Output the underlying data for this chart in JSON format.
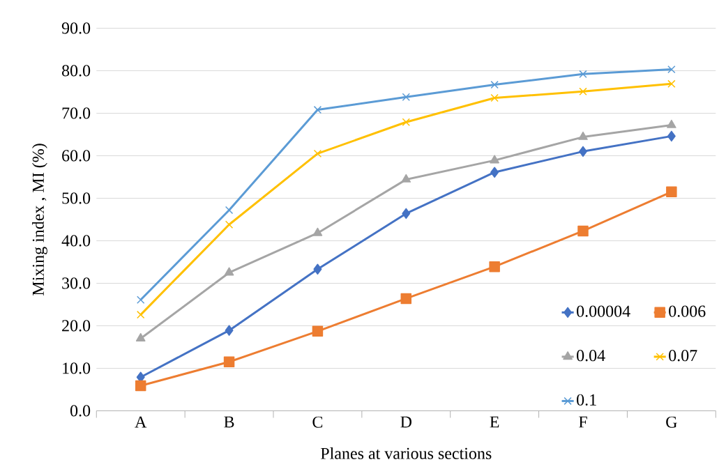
{
  "chart_data": {
    "type": "line",
    "xlabel": "Planes at various sections",
    "ylabel": "Mixing index , MI (%)",
    "categories": [
      "A",
      "B",
      "C",
      "D",
      "E",
      "F",
      "G"
    ],
    "series": [
      {
        "name": "0.00004",
        "color": "#4472c4",
        "marker": "diamond",
        "values": [
          7.9,
          18.9,
          33.3,
          46.4,
          56.1,
          61.0,
          64.6
        ]
      },
      {
        "name": "0.006",
        "color": "#ed7d31",
        "marker": "square",
        "values": [
          5.9,
          11.5,
          18.7,
          26.4,
          33.9,
          42.3,
          51.5
        ]
      },
      {
        "name": "0.04",
        "color": "#a5a5a5",
        "marker": "triangle",
        "values": [
          17.0,
          32.5,
          41.8,
          54.4,
          58.9,
          64.4,
          67.2
        ]
      },
      {
        "name": "0.07",
        "color": "#ffc000",
        "marker": "cross",
        "values": [
          22.6,
          43.8,
          60.5,
          67.9,
          73.6,
          75.1,
          76.9
        ]
      },
      {
        "name": "0.1",
        "color": "#5b9bd5",
        "marker": "cross",
        "values": [
          26.1,
          47.2,
          70.8,
          73.8,
          76.7,
          79.2,
          80.3
        ]
      }
    ],
    "ylim": [
      0,
      90
    ],
    "yticks": [
      {
        "value": 0,
        "label": "0.0"
      },
      {
        "value": 10,
        "label": "10.0"
      },
      {
        "value": 20,
        "label": "20.0"
      },
      {
        "value": 30,
        "label": "30.0"
      },
      {
        "value": 40,
        "label": "40.0"
      },
      {
        "value": 50,
        "label": "50.0"
      },
      {
        "value": 60,
        "label": "60.0"
      },
      {
        "value": 70,
        "label": "70.0"
      },
      {
        "value": 80,
        "label": "80.0"
      },
      {
        "value": 90,
        "label": "90.0"
      }
    ],
    "grid": "y",
    "legend": "bottom right"
  }
}
